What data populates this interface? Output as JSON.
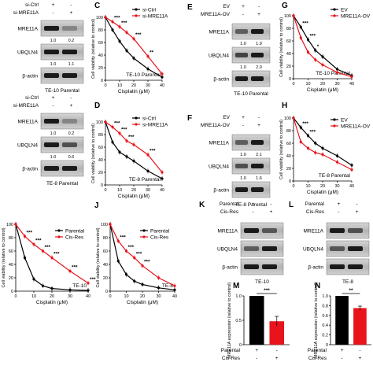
{
  "colors": {
    "control": "#000000",
    "treated": "#e8131b",
    "blot_dark": "#1a1a1a",
    "blot_bg": "#bdbdbd"
  },
  "units": {
    "cisplatin": "Cisplatin (μM)",
    "viability": "Cell viability (relative to control)",
    "expression": "MRE11A expression (relative to control)"
  },
  "blots": [
    {
      "id": "A",
      "letter": "",
      "caption": "TE-10 Parental",
      "conditions": [
        {
          "label": "si-Ctrl",
          "marks": [
            "+",
            "-"
          ]
        },
        {
          "label": "si-MRE11A",
          "marks": [
            "-",
            "+"
          ]
        }
      ],
      "bands": [
        {
          "label": "MRE11A",
          "intensity": [
            1.0,
            0.2
          ],
          "quant": [
            "1.0",
            "0.2"
          ]
        },
        {
          "label": "UBQLN4",
          "intensity": [
            1.0,
            1.1
          ],
          "quant": [
            "1.0",
            "1.1"
          ]
        },
        {
          "label": "β-actin",
          "intensity": [
            1.0,
            1.0
          ],
          "quant": null
        }
      ]
    },
    {
      "id": "B",
      "letter": "",
      "caption": "TE-8 Parental",
      "conditions": [
        {
          "label": "si-Ctrl",
          "marks": [
            "+",
            "-"
          ]
        },
        {
          "label": "si-MRE11A",
          "marks": [
            "-",
            "+"
          ]
        }
      ],
      "bands": [
        {
          "label": "MRE11A",
          "intensity": [
            1.0,
            0.2
          ],
          "quant": [
            "1.0",
            "0.2"
          ]
        },
        {
          "label": "UBQLN4",
          "intensity": [
            1.0,
            0.6
          ],
          "quant": [
            "1.0",
            "0.6"
          ]
        },
        {
          "label": "β-actin",
          "intensity": [
            1.0,
            1.0
          ],
          "quant": null
        }
      ]
    },
    {
      "id": "E",
      "letter": "E",
      "caption": "TE-10 Parental",
      "conditions": [
        {
          "label": "EV",
          "marks": [
            "+",
            "-"
          ]
        },
        {
          "label": "MRE11A-OV",
          "marks": [
            "-",
            "+"
          ]
        }
      ],
      "bands": [
        {
          "label": "MRE11A",
          "intensity": [
            0.5,
            1.0
          ],
          "quant": [
            "1.0",
            "1.9"
          ]
        },
        {
          "label": "UBQLN4",
          "intensity": [
            0.7,
            1.0
          ],
          "quant": [
            "1.0",
            "2.0"
          ]
        },
        {
          "label": "β-actin",
          "intensity": [
            1.0,
            1.0
          ],
          "quant": null
        }
      ]
    },
    {
      "id": "F",
      "letter": "F",
      "caption": "TE-8 Parental",
      "conditions": [
        {
          "label": "EV",
          "marks": [
            "+",
            "-"
          ]
        },
        {
          "label": "MRE11A-OV",
          "marks": [
            "-",
            "+"
          ]
        }
      ],
      "bands": [
        {
          "label": "MRE11A",
          "intensity": [
            0.5,
            1.0
          ],
          "quant": [
            "1.0",
            "2.1"
          ]
        },
        {
          "label": "UBQLN4",
          "intensity": [
            0.6,
            1.0
          ],
          "quant": [
            "1.0",
            "1.6"
          ]
        },
        {
          "label": "β-actin",
          "intensity": [
            1.0,
            1.0
          ],
          "quant": null
        }
      ]
    },
    {
      "id": "K",
      "letter": "K",
      "caption": "TE-10",
      "conditions": [
        {
          "label": "Parental",
          "marks": [
            "+",
            "-"
          ]
        },
        {
          "label": "Cis-Res",
          "marks": [
            "-",
            "+"
          ]
        }
      ],
      "bands": [
        {
          "label": "MRE11A",
          "intensity": [
            1.0,
            0.55
          ],
          "quant": null
        },
        {
          "label": "UBQLN4",
          "intensity": [
            0.5,
            1.0
          ],
          "quant": null
        },
        {
          "label": "β-actin",
          "intensity": [
            1.0,
            1.0
          ],
          "quant": null
        }
      ]
    },
    {
      "id": "L",
      "letter": "L",
      "caption": "TE-8",
      "conditions": [
        {
          "label": "Parental",
          "marks": [
            "+",
            "-"
          ]
        },
        {
          "label": "Cis-Res",
          "marks": [
            "-",
            "+"
          ]
        }
      ],
      "bands": [
        {
          "label": "MRE11A",
          "intensity": [
            1.0,
            0.6
          ],
          "quant": null
        },
        {
          "label": "UBQLN4",
          "intensity": [
            0.55,
            1.0
          ],
          "quant": null
        },
        {
          "label": "β-actin",
          "intensity": [
            1.0,
            1.0
          ],
          "quant": null
        }
      ]
    }
  ],
  "chart_data": [
    {
      "id": "C",
      "letter": "C",
      "type": "line",
      "title": "TE-10 Parental",
      "xlabel": "Cisplatin (μM)",
      "ylabel": "Cell viability (relative to control)",
      "x": [
        0,
        5,
        10,
        15,
        20,
        30,
        40
      ],
      "xlim": [
        0,
        40
      ],
      "ylim": [
        0,
        100
      ],
      "xticks": [
        0,
        10,
        20,
        30,
        40
      ],
      "yticks": [
        0,
        20,
        40,
        60,
        80,
        100
      ],
      "legend_position": "top-right",
      "clip_right": false,
      "series": [
        {
          "name": "si-Ctrl",
          "color": "#000000",
          "values": [
            100,
            80,
            62,
            47,
            35,
            18,
            5
          ]
        },
        {
          "name": "si-MRE11A",
          "color": "#e8131b",
          "values": [
            100,
            93,
            85,
            76,
            66,
            38,
            10
          ]
        }
      ],
      "sig": [
        "***",
        "***",
        "***",
        "**"
      ],
      "sig_x": [
        5,
        10,
        20,
        30
      ]
    },
    {
      "id": "D",
      "letter": "D",
      "type": "line",
      "title": "TE-8 Parental",
      "xlabel": "Cisplatin (μM)",
      "ylabel": "Cell viability (relative to control)",
      "x": [
        0,
        5,
        10,
        15,
        20,
        30,
        40
      ],
      "xlim": [
        0,
        40
      ],
      "ylim": [
        0,
        100
      ],
      "xticks": [
        0,
        10,
        20,
        30,
        40
      ],
      "yticks": [
        0,
        20,
        40,
        60,
        80,
        100
      ],
      "legend_position": "top-right",
      "clip_right": false,
      "series": [
        {
          "name": "si-Ctrl",
          "color": "#000000",
          "values": [
            100,
            68,
            52,
            45,
            38,
            22,
            10
          ]
        },
        {
          "name": "si-MRE11A",
          "color": "#e8131b",
          "values": [
            100,
            92,
            82,
            70,
            64,
            48,
            20
          ]
        }
      ],
      "sig": [
        "***",
        "***",
        "***",
        "***"
      ],
      "sig_x": [
        5,
        10,
        15,
        30
      ]
    },
    {
      "id": "G",
      "letter": "G",
      "type": "line",
      "title": "TE-10 Parental",
      "xlabel": "Cisplatin (μM)",
      "ylabel": "Cell viability (relative to control)",
      "x": [
        0,
        5,
        10,
        15,
        20,
        30,
        40
      ],
      "xlim": [
        0,
        40
      ],
      "ylim": [
        0,
        100
      ],
      "xticks": [
        0,
        10,
        20,
        30,
        40
      ],
      "yticks": [
        0,
        20,
        40,
        60,
        80,
        100
      ],
      "legend_position": "top-right",
      "clip_right": true,
      "series": [
        {
          "name": "EV",
          "color": "#000000",
          "values": [
            100,
            82,
            62,
            45,
            35,
            15,
            5
          ]
        },
        {
          "name": "MRE11A-OV",
          "color": "#e8131b",
          "values": [
            100,
            65,
            42,
            30,
            22,
            10,
            3
          ]
        }
      ],
      "sig": [
        "***",
        "***",
        "*"
      ],
      "sig_x": [
        5,
        10,
        15
      ]
    },
    {
      "id": "H",
      "letter": "H",
      "type": "line",
      "title": "TE-8 Parental",
      "xlabel": "Cisplatin (μM)",
      "ylabel": "Cell viability (relative to control)",
      "x": [
        0,
        5,
        10,
        15,
        20,
        30,
        40
      ],
      "xlim": [
        0,
        40
      ],
      "ylim": [
        0,
        100
      ],
      "xticks": [
        0,
        10,
        20,
        30,
        40
      ],
      "yticks": [
        0,
        20,
        40,
        60,
        80,
        100
      ],
      "legend_position": "top-right",
      "clip_right": true,
      "series": [
        {
          "name": "EV",
          "color": "#000000",
          "values": [
            100,
            85,
            72,
            60,
            52,
            40,
            25
          ]
        },
        {
          "name": "MRE11A-OV",
          "color": "#e8131b",
          "values": [
            100,
            62,
            52,
            45,
            42,
            30,
            18
          ]
        }
      ],
      "sig": [
        "***",
        "***"
      ],
      "sig_x": [
        5,
        10
      ]
    },
    {
      "id": "I",
      "letter": "",
      "type": "line",
      "title": "TE-10",
      "xlabel": "Cisplatin (μM)",
      "ylabel": "Cell viability (relative to control)",
      "x": [
        0,
        5,
        10,
        15,
        20,
        30,
        40
      ],
      "xlim": [
        0,
        40
      ],
      "ylim": [
        0,
        100
      ],
      "xticks": [
        0,
        10,
        20,
        30,
        40
      ],
      "yticks": [
        0,
        20,
        40,
        60,
        80,
        100
      ],
      "legend_position": "top-right",
      "clip_right": false,
      "series": [
        {
          "name": "Parental",
          "color": "#000000",
          "values": [
            100,
            50,
            18,
            8,
            4,
            2,
            1
          ]
        },
        {
          "name": "Cis-Res",
          "color": "#e8131b",
          "values": [
            100,
            82,
            70,
            60,
            50,
            30,
            12
          ]
        }
      ],
      "sig": [
        "***",
        "***",
        "***",
        "***",
        "***",
        "***"
      ],
      "sig_x": [
        5,
        10,
        15,
        20,
        30,
        40
      ]
    },
    {
      "id": "J",
      "letter": "J",
      "type": "line",
      "title": "TE-8",
      "xlabel": "Cisplatin (μM)",
      "ylabel": "Cell viability (relative to control)",
      "x": [
        0,
        5,
        10,
        15,
        20,
        30,
        40
      ],
      "xlim": [
        0,
        40
      ],
      "ylim": [
        0,
        100
      ],
      "xticks": [
        0,
        10,
        20,
        30,
        40
      ],
      "yticks": [
        0,
        20,
        40,
        60,
        80,
        100
      ],
      "legend_position": "top-right",
      "clip_right": false,
      "series": [
        {
          "name": "Parental",
          "color": "#000000",
          "values": [
            100,
            45,
            25,
            15,
            10,
            5,
            2
          ]
        },
        {
          "name": "Cis-Res",
          "color": "#e8131b",
          "values": [
            100,
            75,
            60,
            50,
            38,
            20,
            8
          ]
        }
      ],
      "sig": [
        "***",
        "***",
        "***",
        "***"
      ],
      "sig_x": [
        5,
        10,
        15,
        20
      ]
    },
    {
      "id": "M",
      "letter": "M",
      "type": "bar",
      "title": "TE-10",
      "ylabel": "MRE11A expression (relative to control)",
      "ylim": [
        0,
        1.0
      ],
      "yticks": [
        0,
        0.5,
        1.0
      ],
      "ytick_labels": [
        "0",
        "0.5",
        "1.0"
      ],
      "categories": [
        "Parental",
        "Cis-Res"
      ],
      "values": [
        1.0,
        0.48
      ],
      "errors": [
        0.0,
        0.1
      ],
      "bar_colors": [
        "#000000",
        "#e8131b"
      ],
      "sig": "***",
      "conditions": [
        {
          "label": "Parental",
          "marks": [
            "+",
            "-"
          ]
        },
        {
          "label": "Cis-Res",
          "marks": [
            "-",
            "+"
          ]
        }
      ]
    },
    {
      "id": "N",
      "letter": "N",
      "type": "bar",
      "title": "TE-8",
      "ylabel": "MRE11A expression (relative to control)",
      "ylim": [
        0,
        1.0
      ],
      "yticks": [
        0,
        0.2,
        0.4,
        0.6,
        0.8,
        1.0
      ],
      "ytick_labels": [
        "0",
        "0.2",
        "0.4",
        "0.6",
        "0.8",
        "1.0"
      ],
      "categories": [
        "Parental",
        "Cis-Res"
      ],
      "values": [
        1.0,
        0.75
      ],
      "errors": [
        0.0,
        0.04
      ],
      "bar_colors": [
        "#000000",
        "#e8131b"
      ],
      "sig": "**",
      "conditions": [
        {
          "label": "Parental",
          "marks": [
            "+",
            "-"
          ]
        },
        {
          "label": "Cis-Res",
          "marks": [
            "-",
            "+"
          ]
        }
      ]
    }
  ]
}
